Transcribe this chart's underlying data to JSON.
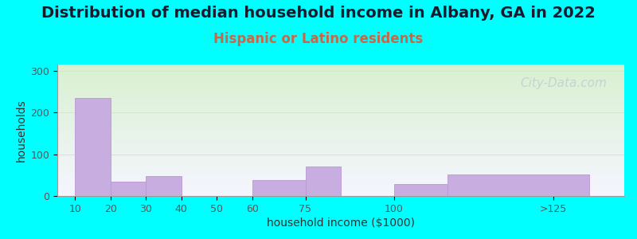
{
  "title": "Distribution of median household income in Albany, GA in 2022",
  "subtitle": "Hispanic or Latino residents",
  "xlabel": "household income ($1000)",
  "ylabel": "households",
  "bar_lefts": [
    10,
    20,
    30,
    40,
    60,
    75,
    100,
    115
  ],
  "bar_rights": [
    20,
    30,
    40,
    50,
    75,
    85,
    115,
    155
  ],
  "bar_heights": [
    235,
    35,
    48,
    0,
    38,
    70,
    28,
    52
  ],
  "bar_color": "#c8aee0",
  "bar_edgecolor": "#b898d4",
  "xtick_positions": [
    10,
    20,
    30,
    40,
    50,
    60,
    75,
    100,
    145
  ],
  "xtick_labels": [
    "10",
    "20",
    "30",
    "40",
    "50",
    "60",
    "75",
    "100",
    ">125"
  ],
  "ytick_positions": [
    0,
    100,
    200,
    300
  ],
  "ytick_labels": [
    "0",
    "100",
    "200",
    "300"
  ],
  "ylim": [
    0,
    315
  ],
  "xlim": [
    5,
    165
  ],
  "bg_color_outer": "#00ffff",
  "bg_color_plot_top_left": "#d8f0d0",
  "bg_color_plot_bottom": "#f0f0ff",
  "title_fontsize": 14,
  "subtitle_fontsize": 12,
  "subtitle_color": "#cc6644",
  "axis_label_fontsize": 10,
  "tick_fontsize": 9,
  "watermark_text": "City-Data.com",
  "watermark_color": "#c0cece",
  "watermark_fontsize": 11
}
